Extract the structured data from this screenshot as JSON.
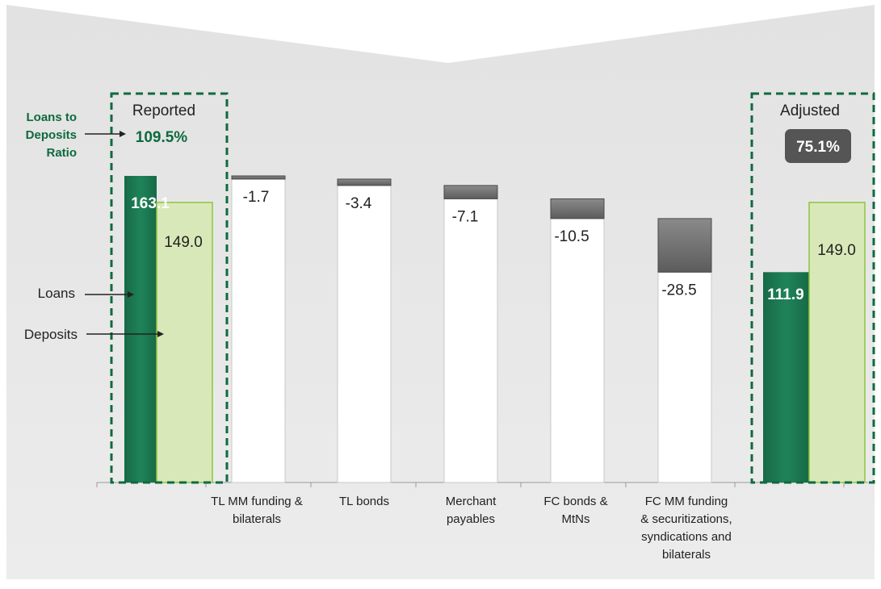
{
  "chart_data": {
    "type": "bar",
    "subtype": "waterfall",
    "annotations": {
      "ratio_label": "Loans to Deposits Ratio",
      "ratio_label_lines": [
        "Loans to",
        "Deposits",
        "Ratio"
      ],
      "loans_label": "Loans",
      "deposits_label": "Deposits"
    },
    "reported": {
      "header": "Reported",
      "ratio": "109.5%",
      "loans": 163.1,
      "deposits": 149.0,
      "loans_label": "163.1",
      "deposits_label": "149.0"
    },
    "adjustments": [
      {
        "category": "TL MM funding & bilaterals",
        "category_lines": [
          "TL MM funding &",
          "bilaterals"
        ],
        "value": -1.7,
        "label": "-1.7"
      },
      {
        "category": "TL bonds",
        "category_lines": [
          "TL bonds"
        ],
        "value": -3.4,
        "label": "-3.4"
      },
      {
        "category": "Merchant payables",
        "category_lines": [
          "Merchant",
          "payables"
        ],
        "value": -7.1,
        "label": "-7.1"
      },
      {
        "category": "FC bonds & MtNs",
        "category_lines": [
          "FC bonds &",
          "MtNs"
        ],
        "value": -10.5,
        "label": "-10.5"
      },
      {
        "category": "FC MM funding & securitizations, syndications and bilaterals",
        "category_lines": [
          "FC MM funding",
          "& securitizations,",
          "syndications and",
          "bilaterals"
        ],
        "value": -28.5,
        "label": "-28.5"
      }
    ],
    "adjusted": {
      "header": "Adjusted",
      "ratio": "75.1%",
      "loans": 111.9,
      "deposits": 149.0,
      "loans_label": "111.9",
      "deposits_label": "149.0"
    },
    "colors": {
      "loans": "#1c7a52",
      "deposits": "#d9e8b8",
      "deposits_border": "#8cc63f",
      "adjustment": "#6f6f6f",
      "dashed_box": "#0e6a3e",
      "ratio_text": "#0e6a3e",
      "adjusted_badge": "#555555"
    }
  }
}
